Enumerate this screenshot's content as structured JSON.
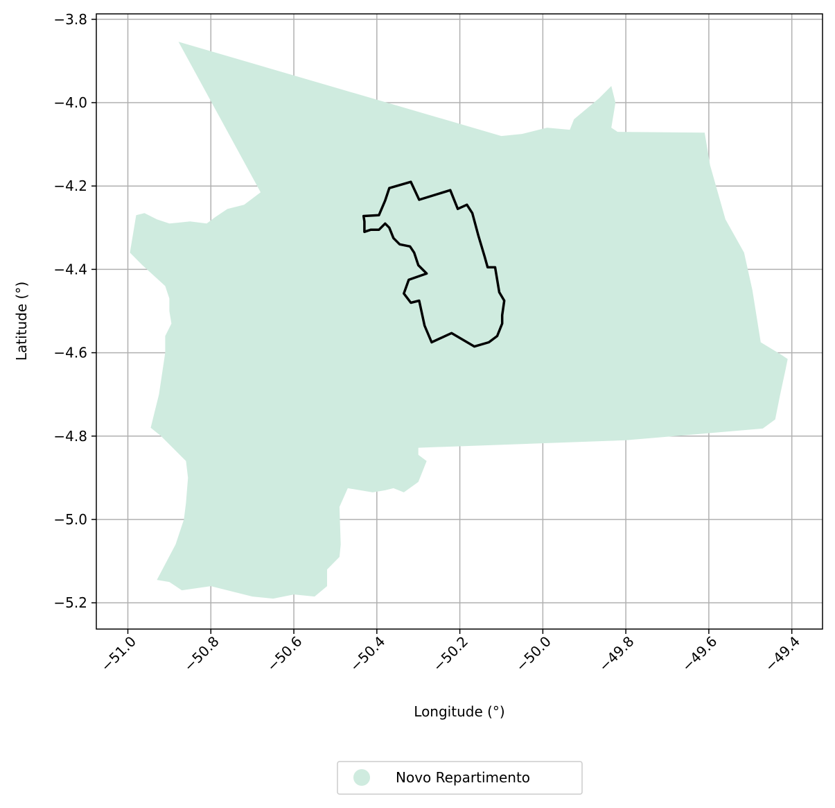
{
  "chart_data": {
    "type": "map",
    "xlabel": "Longitude (°)",
    "ylabel": "Latitude (°)",
    "xlim": [
      -51.076,
      -49.326
    ],
    "ylim": [
      -5.263,
      -3.787
    ],
    "x_ticks": [
      -51.0,
      -50.8,
      -50.6,
      -50.4,
      -50.2,
      -50.0,
      -49.8,
      -49.6,
      -49.4
    ],
    "x_tick_labels": [
      "−51.0",
      "−50.8",
      "−50.6",
      "−50.4",
      "−50.2",
      "−50.0",
      "−49.8",
      "−49.6",
      "−49.4"
    ],
    "y_ticks": [
      -3.8,
      -4.0,
      -4.2,
      -4.4,
      -4.6,
      -4.8,
      -5.0,
      -5.2
    ],
    "y_tick_labels": [
      "−3.8",
      "−4.0",
      "−4.2",
      "−4.4",
      "−4.6",
      "−4.8",
      "−5.0",
      "−5.2"
    ],
    "grid": true,
    "legend_position": "bottom-center",
    "legend": [
      {
        "label": "Novo Repartimento",
        "color": "#cfebdf",
        "marker": "circle"
      }
    ],
    "series": [
      {
        "name": "Novo Repartimento",
        "kind": "filled-polygon",
        "color": "#cfebdf",
        "coords": [
          [
            -50.878,
            -3.854
          ],
          [
            -50.1,
            -4.08
          ],
          [
            -50.05,
            -4.075
          ],
          [
            -49.99,
            -4.06
          ],
          [
            -49.935,
            -4.065
          ],
          [
            -49.925,
            -4.04
          ],
          [
            -49.865,
            -3.99
          ],
          [
            -49.835,
            -3.96
          ],
          [
            -49.825,
            -4.0
          ],
          [
            -49.835,
            -4.06
          ],
          [
            -49.82,
            -4.07
          ],
          [
            -49.61,
            -4.072
          ],
          [
            -49.597,
            -4.15
          ],
          [
            -49.56,
            -4.28
          ],
          [
            -49.515,
            -4.36
          ],
          [
            -49.495,
            -4.45
          ],
          [
            -49.475,
            -4.575
          ],
          [
            -49.425,
            -4.605
          ],
          [
            -49.41,
            -4.615
          ],
          [
            -49.415,
            -4.64
          ],
          [
            -49.428,
            -4.7
          ],
          [
            -49.44,
            -4.76
          ],
          [
            -49.47,
            -4.782
          ],
          [
            -49.8,
            -4.81
          ],
          [
            -50.3,
            -4.828
          ],
          [
            -50.3,
            -4.845
          ],
          [
            -50.28,
            -4.86
          ],
          [
            -50.3,
            -4.91
          ],
          [
            -50.335,
            -4.935
          ],
          [
            -50.36,
            -4.925
          ],
          [
            -50.38,
            -4.93
          ],
          [
            -50.41,
            -4.935
          ],
          [
            -50.47,
            -4.925
          ],
          [
            -50.49,
            -4.97
          ],
          [
            -50.487,
            -5.06
          ],
          [
            -50.49,
            -5.09
          ],
          [
            -50.52,
            -5.12
          ],
          [
            -50.52,
            -5.16
          ],
          [
            -50.55,
            -5.185
          ],
          [
            -50.6,
            -5.18
          ],
          [
            -50.65,
            -5.19
          ],
          [
            -50.7,
            -5.185
          ],
          [
            -50.76,
            -5.17
          ],
          [
            -50.8,
            -5.16
          ],
          [
            -50.87,
            -5.17
          ],
          [
            -50.9,
            -5.15
          ],
          [
            -50.93,
            -5.145
          ],
          [
            -50.885,
            -5.06
          ],
          [
            -50.865,
            -5.0
          ],
          [
            -50.86,
            -4.96
          ],
          [
            -50.855,
            -4.9
          ],
          [
            -50.86,
            -4.86
          ],
          [
            -50.9,
            -4.82
          ],
          [
            -50.92,
            -4.8
          ],
          [
            -50.945,
            -4.78
          ],
          [
            -50.935,
            -4.74
          ],
          [
            -50.925,
            -4.7
          ],
          [
            -50.91,
            -4.6
          ],
          [
            -50.91,
            -4.56
          ],
          [
            -50.895,
            -4.53
          ],
          [
            -50.9,
            -4.5
          ],
          [
            -50.9,
            -4.47
          ],
          [
            -50.91,
            -4.44
          ],
          [
            -50.965,
            -4.39
          ],
          [
            -50.995,
            -4.36
          ],
          [
            -50.99,
            -4.33
          ],
          [
            -50.985,
            -4.3
          ],
          [
            -50.98,
            -4.27
          ],
          [
            -50.96,
            -4.265
          ],
          [
            -50.93,
            -4.28
          ],
          [
            -50.9,
            -4.29
          ],
          [
            -50.85,
            -4.285
          ],
          [
            -50.81,
            -4.29
          ],
          [
            -50.79,
            -4.275
          ],
          [
            -50.76,
            -4.255
          ],
          [
            -50.72,
            -4.245
          ],
          [
            -50.7,
            -4.23
          ],
          [
            -50.68,
            -4.215
          ]
        ]
      },
      {
        "name": "",
        "kind": "outline",
        "color": "#000000",
        "coords": [
          [
            -50.318,
            -4.19
          ],
          [
            -50.298,
            -4.233
          ],
          [
            -50.223,
            -4.21
          ],
          [
            -50.205,
            -4.255
          ],
          [
            -50.183,
            -4.245
          ],
          [
            -50.17,
            -4.265
          ],
          [
            -50.155,
            -4.32
          ],
          [
            -50.14,
            -4.37
          ],
          [
            -50.133,
            -4.395
          ],
          [
            -50.115,
            -4.395
          ],
          [
            -50.105,
            -4.455
          ],
          [
            -50.093,
            -4.475
          ],
          [
            -50.098,
            -4.51
          ],
          [
            -50.098,
            -4.53
          ],
          [
            -50.11,
            -4.56
          ],
          [
            -50.13,
            -4.575
          ],
          [
            -50.165,
            -4.585
          ],
          [
            -50.22,
            -4.553
          ],
          [
            -50.268,
            -4.575
          ],
          [
            -50.285,
            -4.535
          ],
          [
            -50.298,
            -4.475
          ],
          [
            -50.318,
            -4.48
          ],
          [
            -50.335,
            -4.458
          ],
          [
            -50.323,
            -4.425
          ],
          [
            -50.28,
            -4.41
          ],
          [
            -50.3,
            -4.39
          ],
          [
            -50.31,
            -4.36
          ],
          [
            -50.32,
            -4.345
          ],
          [
            -50.345,
            -4.34
          ],
          [
            -50.36,
            -4.325
          ],
          [
            -50.37,
            -4.3
          ],
          [
            -50.38,
            -4.29
          ],
          [
            -50.395,
            -4.305
          ],
          [
            -50.415,
            -4.305
          ],
          [
            -50.43,
            -4.31
          ],
          [
            -50.43,
            -4.285
          ],
          [
            -50.432,
            -4.272
          ],
          [
            -50.395,
            -4.27
          ],
          [
            -50.38,
            -4.235
          ],
          [
            -50.37,
            -4.205
          ]
        ]
      }
    ]
  }
}
